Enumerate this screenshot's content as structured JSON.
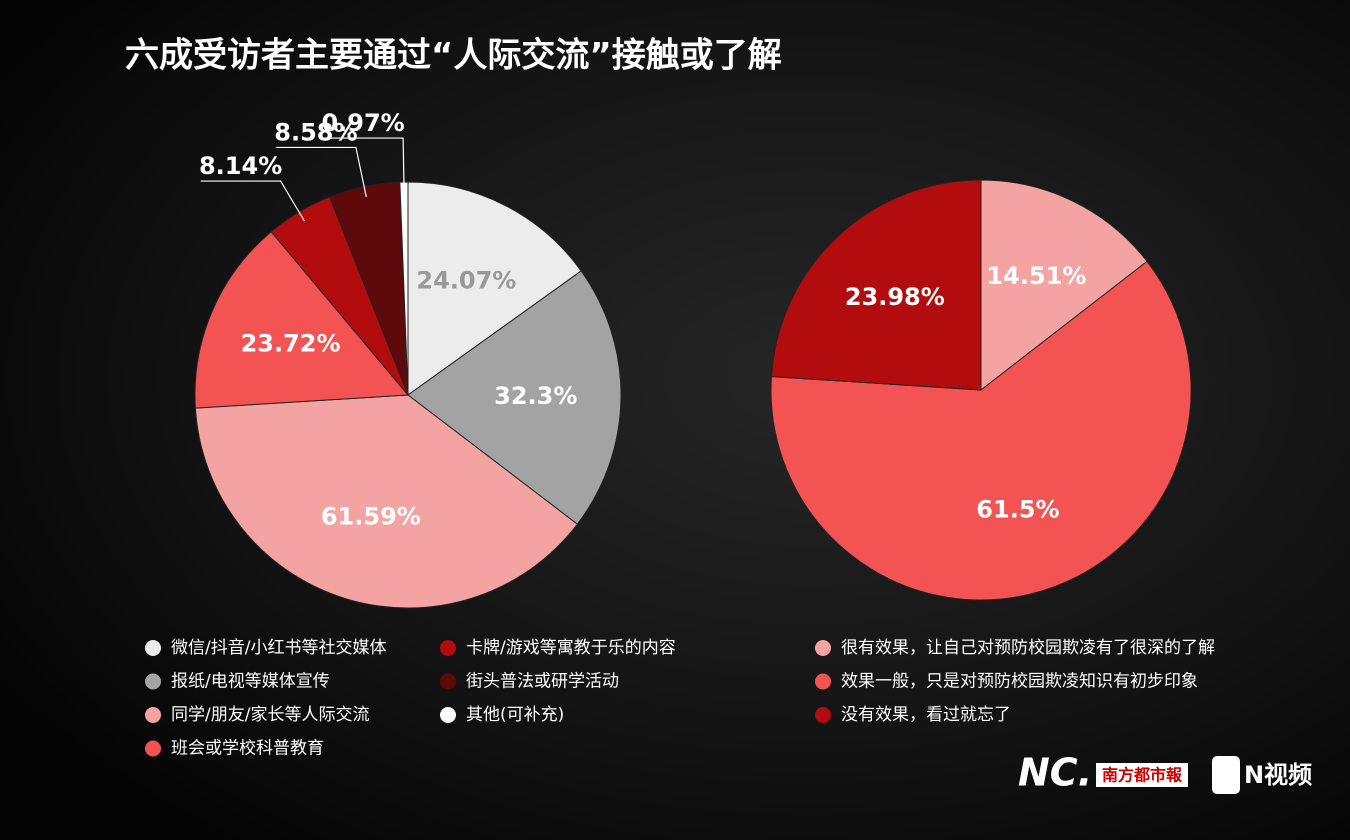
{
  "title": "六成受访者主要通过“人际交流”接触或了解",
  "chart_data": [
    {
      "type": "pie",
      "categories": [
        "微信/抖音/小红书等社交媒体",
        "报纸/电视等媒体宣传",
        "同学/朋友/家长等人际交流",
        "班会或学校科普教育",
        "卡牌/游戏等寓教于乐的内容",
        "街头普法或研学活动",
        "其他(可补充)"
      ],
      "values": [
        24.07,
        32.3,
        61.59,
        23.72,
        8.14,
        8.58,
        0.97
      ],
      "value_labels": [
        "24.07%",
        "32.3%",
        "61.59%",
        "23.72%",
        "8.14%",
        "8.58%",
        "0.97%"
      ],
      "colors": [
        "#ececec",
        "#a3a3a3",
        "#f4a3a3",
        "#f35352",
        "#b30c0f",
        "#5e0a0b",
        "#ffffff"
      ],
      "legend": "bottom"
    },
    {
      "type": "pie",
      "categories": [
        "很有效果，让自己对预防校园欺凌有了很深的了解",
        "效果一般，只是对预防校园欺凌知识有初步印象",
        "没有效果，看过就忘了"
      ],
      "values": [
        14.51,
        61.5,
        23.98
      ],
      "value_labels": [
        "14.51%",
        "61.5%",
        "23.98%"
      ],
      "colors": [
        "#f4a3a3",
        "#f35352",
        "#b30c0f"
      ],
      "legend": "bottom"
    }
  ],
  "branding": [
    "NC.",
    "南方都市報",
    "N视频"
  ]
}
